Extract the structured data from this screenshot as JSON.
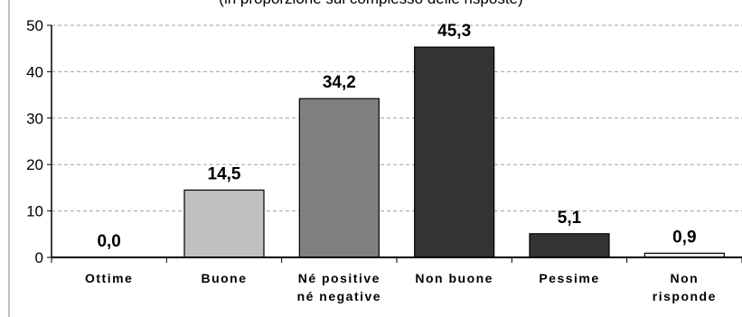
{
  "chart_data": {
    "type": "bar",
    "title": "(in proporzione sul complesso delle risposte)",
    "xlabel": "",
    "ylabel": "",
    "categories": [
      [
        "Ottime"
      ],
      [
        "Buone"
      ],
      [
        "Né positive",
        "né negative"
      ],
      [
        "Non buone"
      ],
      [
        "Pessime"
      ],
      [
        "Non",
        "risponde"
      ]
    ],
    "values": [
      0.0,
      14.5,
      34.2,
      45.3,
      5.1,
      0.9
    ],
    "value_labels": [
      "0,0",
      "14,5",
      "34,2",
      "45,3",
      "5,1",
      "0,9"
    ],
    "bar_colors": [
      "#e0e0e0",
      "#c0c0c0",
      "#808080",
      "#333333",
      "#333333",
      "#e6e6e6"
    ],
    "ylim": [
      0,
      50
    ],
    "yticks": [
      0,
      10,
      20,
      30,
      40,
      50
    ],
    "ytick_labels": [
      "0",
      "10",
      "20",
      "30",
      "40",
      "50"
    ],
    "grid": true,
    "legend": "none"
  }
}
